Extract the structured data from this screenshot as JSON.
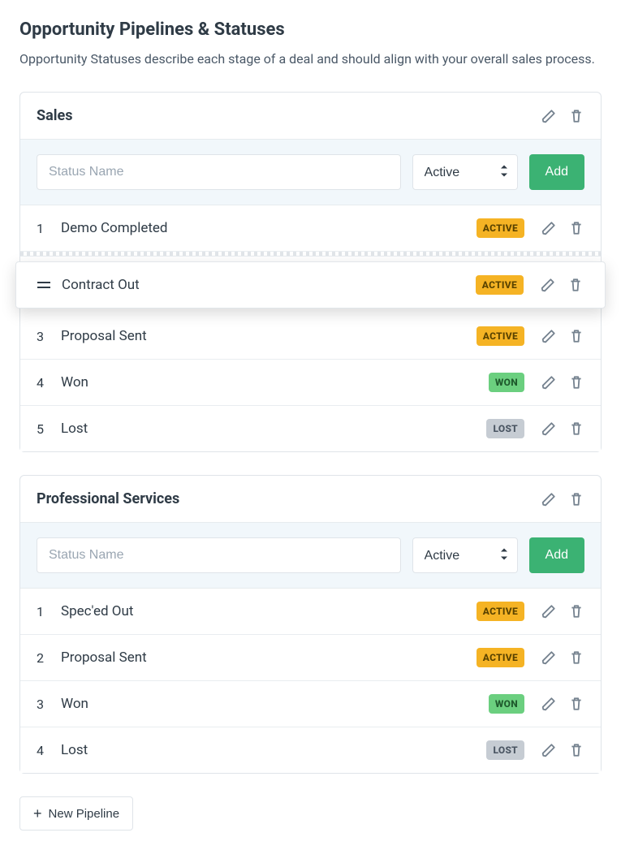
{
  "page": {
    "title": "Opportunity Pipelines & Statuses",
    "description": "Opportunity Statuses describe each stage of a deal and should align with your overall sales process."
  },
  "add_form": {
    "placeholder": "Status Name",
    "select_value": "Active",
    "add_label": "Add"
  },
  "badge_colors": {
    "ACTIVE": {
      "bg": "#f5b324",
      "fg": "#5a4300"
    },
    "WON": {
      "bg": "#6bcf7f",
      "fg": "#1f5a2d"
    },
    "LOST": {
      "bg": "#c6ccd3",
      "fg": "#4a5562"
    }
  },
  "pipelines": [
    {
      "name": "Sales",
      "statuses": [
        {
          "num": "1",
          "name": "Demo Completed",
          "badge": "ACTIVE",
          "dragging": false
        },
        {
          "num": "",
          "name": "Contract Out",
          "badge": "ACTIVE",
          "dragging": true
        },
        {
          "num": "3",
          "name": "Proposal Sent",
          "badge": "ACTIVE",
          "dragging": false
        },
        {
          "num": "4",
          "name": "Won",
          "badge": "WON",
          "dragging": false
        },
        {
          "num": "5",
          "name": "Lost",
          "badge": "LOST",
          "dragging": false
        }
      ]
    },
    {
      "name": "Professional Services",
      "statuses": [
        {
          "num": "1",
          "name": "Spec'ed Out",
          "badge": "ACTIVE",
          "dragging": false
        },
        {
          "num": "2",
          "name": "Proposal Sent",
          "badge": "ACTIVE",
          "dragging": false
        },
        {
          "num": "3",
          "name": "Won",
          "badge": "WON",
          "dragging": false
        },
        {
          "num": "4",
          "name": "Lost",
          "badge": "LOST",
          "dragging": false
        }
      ]
    }
  ],
  "new_pipeline_label": "New Pipeline"
}
